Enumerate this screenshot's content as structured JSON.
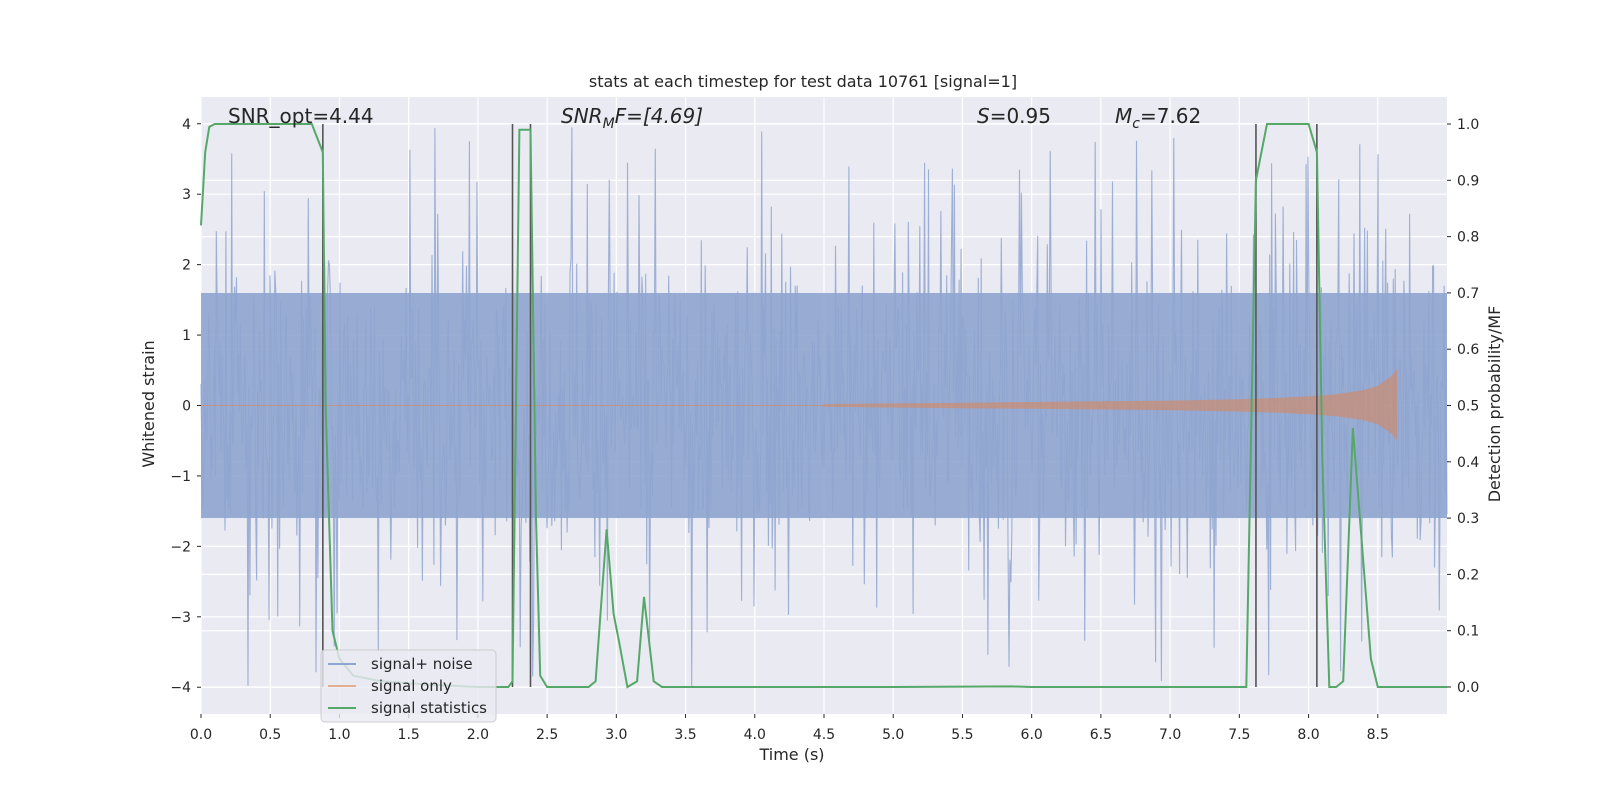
{
  "chart_data": {
    "type": "line",
    "title": "stats at each timestep for test data 10761 [signal=1]",
    "xlabel": "Time (s)",
    "ylabel_left": "Whitened strain",
    "ylabel_right": "Detection probability/MF",
    "xlim": [
      0.0,
      9.0
    ],
    "ylim_left": [
      -4.38,
      4.38
    ],
    "ylim_right": [
      -0.048,
      1.048
    ],
    "grid": true,
    "x_ticks": [
      0.0,
      0.5,
      1.0,
      1.5,
      2.0,
      2.5,
      3.0,
      3.5,
      4.0,
      4.5,
      5.0,
      5.5,
      6.0,
      6.5,
      7.0,
      7.5,
      8.0,
      8.5
    ],
    "x_tick_labels": [
      "0.0",
      "0.5",
      "1.0",
      "1.5",
      "2.0",
      "2.5",
      "3.0",
      "3.5",
      "4.0",
      "4.5",
      "5.0",
      "5.5",
      "6.0",
      "6.5",
      "7.0",
      "7.5",
      "8.0",
      "8.5"
    ],
    "y_left_ticks": [
      -4,
      -3,
      -2,
      -1,
      0,
      1,
      2,
      3,
      4
    ],
    "y_left_tick_labels": [
      "−4",
      "−3",
      "−2",
      "−1",
      "0",
      "1",
      "2",
      "3",
      "4"
    ],
    "y_right_ticks": [
      0.0,
      0.1,
      0.2,
      0.3,
      0.4,
      0.5,
      0.6,
      0.7,
      0.8,
      0.9,
      1.0
    ],
    "y_right_tick_labels": [
      "0.0",
      "0.1",
      "0.2",
      "0.3",
      "0.4",
      "0.5",
      "0.6",
      "0.7",
      "0.8",
      "0.9",
      "1.0"
    ],
    "annotations": {
      "snr_opt": "SNR_opt=4.44",
      "snr_mf_sym": "SNR",
      "snr_mf_sub": "M",
      "snr_mf_rest": "F=[4.69]",
      "s_sym": "S",
      "s_rest": "=0.95",
      "mc_sym": "M",
      "mc_sub": "c",
      "mc_rest": "=7.62"
    },
    "vertical_lines_x": [
      0.88,
      2.25,
      2.38,
      7.62,
      8.06
    ],
    "series": [
      {
        "name": "signal+ noise",
        "color": "#8fa5cf",
        "description_envelope": "Dense noise trace spanning roughly -1.6 to 1.6 with spikes reaching about ±4",
        "noise_amplitude_core": 1.6,
        "noise_max_abs": 4.0
      },
      {
        "name": "signal only",
        "color": "#dd8452",
        "chirp_envelope": {
          "x": [
            4.5,
            5.0,
            5.5,
            6.0,
            6.5,
            7.0,
            7.5,
            7.8,
            8.0,
            8.2,
            8.4,
            8.5,
            8.6,
            8.64
          ],
          "amplitude": [
            0.02,
            0.03,
            0.04,
            0.05,
            0.06,
            0.07,
            0.09,
            0.11,
            0.13,
            0.16,
            0.22,
            0.28,
            0.42,
            0.52
          ]
        }
      },
      {
        "name": "signal statistics",
        "color": "#55a868",
        "x": [
          0.0,
          0.03,
          0.06,
          0.1,
          0.2,
          0.8,
          0.88,
          0.9,
          0.95,
          1.0,
          1.1,
          1.3,
          1.6,
          2.0,
          2.15,
          2.22,
          2.25,
          2.3,
          2.35,
          2.38,
          2.42,
          2.45,
          2.5,
          2.6,
          2.8,
          2.85,
          2.93,
          2.98,
          3.02,
          3.08,
          3.15,
          3.2,
          3.27,
          3.33,
          4.0,
          5.0,
          5.85,
          6.0,
          7.0,
          7.55,
          7.62,
          7.7,
          8.0,
          8.06,
          8.1,
          8.15,
          8.2,
          8.25,
          8.32,
          8.38,
          8.45,
          8.5,
          8.6,
          9.0
        ],
        "y": [
          0.82,
          0.95,
          0.995,
          1.0,
          1.0,
          1.0,
          0.95,
          0.5,
          0.1,
          0.05,
          0.02,
          0.01,
          0.005,
          0.0,
          0.0,
          0.0,
          0.01,
          0.99,
          0.99,
          0.99,
          0.3,
          0.02,
          0.0,
          0.0,
          0.0,
          0.01,
          0.28,
          0.13,
          0.08,
          0.0,
          0.01,
          0.16,
          0.01,
          0.0,
          0.0,
          0.0,
          0.001,
          0.0,
          0.0,
          0.0,
          0.9,
          1.0,
          1.0,
          0.95,
          0.4,
          0.0,
          0.0,
          0.01,
          0.46,
          0.27,
          0.05,
          0.0,
          0.0,
          0.0
        ]
      }
    ],
    "legend": {
      "position": "lower-left",
      "entries": [
        "signal+ noise",
        "signal only",
        "signal statistics"
      ]
    }
  }
}
